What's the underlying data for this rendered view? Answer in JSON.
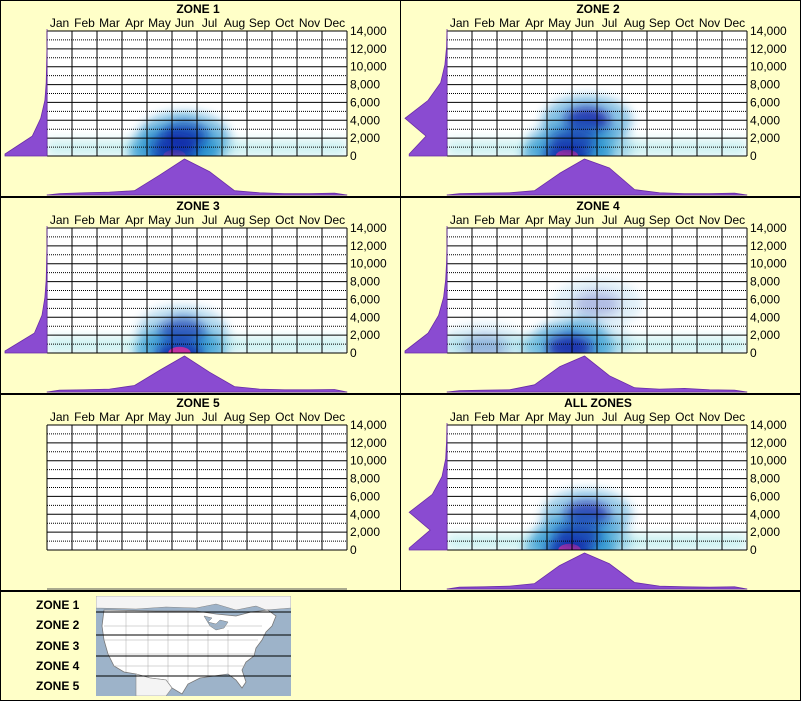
{
  "months": [
    "Jan",
    "Feb",
    "Mar",
    "Apr",
    "May",
    "Jun",
    "Jul",
    "Aug",
    "Sep",
    "Oct",
    "Nov",
    "Dec"
  ],
  "y_ticks": [
    "14,000",
    "12,000",
    "10,000",
    "8,000",
    "6,000",
    "4,000",
    "2,000",
    "0"
  ],
  "chart_data": [
    {
      "type": "heatmap",
      "title": "ZONE 1",
      "x_categories": [
        "Jan",
        "Feb",
        "Mar",
        "Apr",
        "May",
        "Jun",
        "Jul",
        "Aug",
        "Sep",
        "Oct",
        "Nov",
        "Dec"
      ],
      "ylim": [
        0,
        14000
      ],
      "hotspots": [
        {
          "month": 5.6,
          "elevation": 0,
          "intensity": 1.0
        },
        {
          "month": 6.0,
          "elevation": 2200,
          "intensity": 0.85
        },
        {
          "month": 5.6,
          "elevation": 1200,
          "intensity": 0.6
        }
      ],
      "month_profile": [
        0.04,
        0.06,
        0.08,
        0.12,
        0.55,
        1.0,
        0.65,
        0.12,
        0.06,
        0.04,
        0.04,
        0.05
      ],
      "elevation_profile": [
        1.0,
        0.35,
        0.15,
        0.05,
        0.02,
        0.01,
        0,
        0
      ]
    },
    {
      "type": "heatmap",
      "title": "ZONE 2",
      "x_categories": [
        "Jan",
        "Feb",
        "Mar",
        "Apr",
        "May",
        "Jun",
        "Jul",
        "Aug",
        "Sep",
        "Oct",
        "Nov",
        "Dec"
      ],
      "ylim": [
        0,
        14000
      ],
      "hotspots": [
        {
          "month": 5.3,
          "elevation": 0,
          "intensity": 1.0
        },
        {
          "month": 6.1,
          "elevation": 4000,
          "intensity": 0.9
        },
        {
          "month": 5.5,
          "elevation": 1500,
          "intensity": 0.6
        }
      ],
      "month_profile": [
        0.04,
        0.05,
        0.06,
        0.12,
        0.6,
        1.0,
        0.75,
        0.15,
        0.06,
        0.04,
        0.04,
        0.05
      ],
      "elevation_profile": [
        0.9,
        0.5,
        1.0,
        0.45,
        0.15,
        0.05,
        0.01,
        0
      ]
    },
    {
      "type": "heatmap",
      "title": "ZONE 3",
      "x_categories": [
        "Jan",
        "Feb",
        "Mar",
        "Apr",
        "May",
        "Jun",
        "Jul",
        "Aug",
        "Sep",
        "Oct",
        "Nov",
        "Dec"
      ],
      "ylim": [
        0,
        14000
      ],
      "hotspots": [
        {
          "month": 5.8,
          "elevation": 0,
          "intensity": 1.0
        },
        {
          "month": 5.9,
          "elevation": 2500,
          "intensity": 0.55
        }
      ],
      "month_profile": [
        0.05,
        0.06,
        0.08,
        0.18,
        0.6,
        1.0,
        0.55,
        0.15,
        0.08,
        0.06,
        0.06,
        0.07
      ],
      "elevation_profile": [
        1.0,
        0.3,
        0.12,
        0.05,
        0.02,
        0.01,
        0,
        0
      ]
    },
    {
      "type": "heatmap",
      "title": "ZONE 4",
      "x_categories": [
        "Jan",
        "Feb",
        "Mar",
        "Apr",
        "May",
        "Jun",
        "Jul",
        "Aug",
        "Sep",
        "Oct",
        "Nov",
        "Dec"
      ],
      "ylim": [
        0,
        14000
      ],
      "hotspots": [
        {
          "month": 5.4,
          "elevation": 600,
          "intensity": 0.85
        },
        {
          "month": 6.5,
          "elevation": 5500,
          "intensity": 0.25
        },
        {
          "month": 2.0,
          "elevation": 600,
          "intensity": 0.25
        }
      ],
      "month_profile": [
        0.04,
        0.05,
        0.06,
        0.2,
        0.7,
        1.0,
        0.45,
        0.12,
        0.08,
        0.1,
        0.06,
        0.05
      ],
      "elevation_profile": [
        1.0,
        0.45,
        0.2,
        0.08,
        0.03,
        0.01,
        0,
        0
      ]
    },
    {
      "type": "heatmap",
      "title": "ZONE 5",
      "x_categories": [
        "Jan",
        "Feb",
        "Mar",
        "Apr",
        "May",
        "Jun",
        "Jul",
        "Aug",
        "Sep",
        "Oct",
        "Nov",
        "Dec"
      ],
      "ylim": [
        0,
        14000
      ],
      "hotspots": [],
      "month_profile": [],
      "elevation_profile": []
    },
    {
      "type": "heatmap",
      "title": "ALL ZONES",
      "x_categories": [
        "Jan",
        "Feb",
        "Mar",
        "Apr",
        "May",
        "Jun",
        "Jul",
        "Aug",
        "Sep",
        "Oct",
        "Nov",
        "Dec"
      ],
      "ylim": [
        0,
        14000
      ],
      "hotspots": [
        {
          "month": 5.4,
          "elevation": 0,
          "intensity": 1.0
        },
        {
          "month": 6.1,
          "elevation": 4000,
          "intensity": 0.8
        },
        {
          "month": 5.7,
          "elevation": 1500,
          "intensity": 0.6
        }
      ],
      "month_profile": [
        0.05,
        0.06,
        0.08,
        0.15,
        0.65,
        1.0,
        0.7,
        0.18,
        0.08,
        0.06,
        0.05,
        0.06
      ],
      "elevation_profile": [
        0.9,
        0.4,
        0.9,
        0.35,
        0.12,
        0.03,
        0.01,
        0
      ]
    }
  ],
  "legend": {
    "zones": [
      "ZONE 1",
      "ZONE 2",
      "ZONE 3",
      "ZONE 4",
      "ZONE 5"
    ]
  },
  "colors": {
    "background": "#ffffc8",
    "profile_fill": "#8a4bd1",
    "profile_stroke": "#6a2ca8",
    "heat_low": "#c8f0f0",
    "heat_mid": "#1a8ccc",
    "heat_high": "#1010a0",
    "heat_peak": "#ff1493",
    "map_water": "#9db3c9",
    "map_land": "#ffffff"
  }
}
